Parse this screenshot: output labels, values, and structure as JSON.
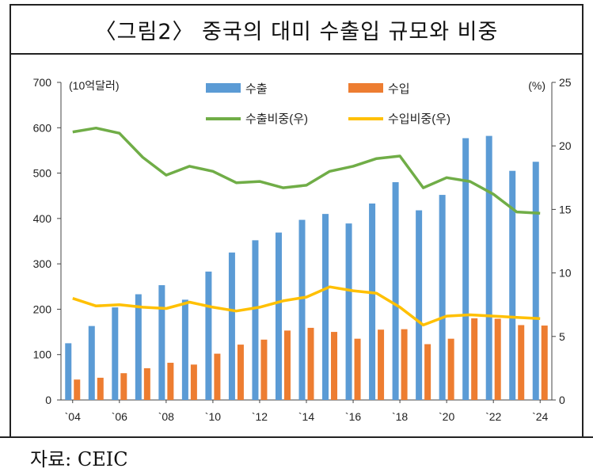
{
  "title": "〈그림2〉 중국의 대미 수출입 규모와 비중",
  "source": "자료: CEIC",
  "chart_data": {
    "type": "bar",
    "x": [
      2004,
      2005,
      2006,
      2007,
      2008,
      2009,
      2010,
      2011,
      2012,
      2013,
      2014,
      2015,
      2016,
      2017,
      2018,
      2019,
      2020,
      2021,
      2022,
      2023,
      2024
    ],
    "x_tick_labels": [
      "`04",
      "`06",
      "`08",
      "`10",
      "`12",
      "`14",
      "`16",
      "`18",
      "`20",
      "`22",
      "`24"
    ],
    "left_unit": "(10억달러)",
    "right_unit": "(%)",
    "left_ylim": [
      0,
      700
    ],
    "left_ticks": [
      "0",
      "100",
      "200",
      "300",
      "400",
      "500",
      "600",
      "700"
    ],
    "right_ylim": [
      0,
      25
    ],
    "right_ticks": [
      "0",
      "5",
      "10",
      "15",
      "20",
      "25"
    ],
    "series": [
      {
        "name": "수출",
        "kind": "bar",
        "axis": "left",
        "color": "#5b9bd5",
        "values": [
          125,
          163,
          204,
          233,
          253,
          221,
          283,
          325,
          352,
          369,
          397,
          410,
          389,
          433,
          480,
          418,
          452,
          577,
          582,
          505,
          525
        ]
      },
      {
        "name": "수입",
        "kind": "bar",
        "axis": "left",
        "color": "#ed7d31",
        "values": [
          45,
          49,
          59,
          70,
          82,
          78,
          102,
          122,
          133,
          153,
          159,
          150,
          135,
          155,
          156,
          123,
          135,
          180,
          179,
          165,
          164
        ]
      },
      {
        "name": "수출비중(우)",
        "kind": "line",
        "axis": "right",
        "color": "#70ad47",
        "values": [
          21.1,
          21.4,
          21.0,
          19.1,
          17.7,
          18.4,
          18.0,
          17.1,
          17.2,
          16.7,
          16.9,
          18.0,
          18.4,
          19.0,
          19.2,
          16.7,
          17.5,
          17.2,
          16.2,
          14.8,
          14.7
        ]
      },
      {
        "name": "수입비중(우)",
        "kind": "line",
        "axis": "right",
        "color": "#ffc000",
        "values": [
          8.0,
          7.4,
          7.5,
          7.3,
          7.2,
          7.7,
          7.3,
          7.0,
          7.3,
          7.8,
          8.1,
          8.9,
          8.6,
          8.4,
          7.3,
          5.9,
          6.6,
          6.7,
          6.6,
          6.5,
          6.4
        ]
      }
    ],
    "grid": false,
    "legend_position": "top-center"
  }
}
